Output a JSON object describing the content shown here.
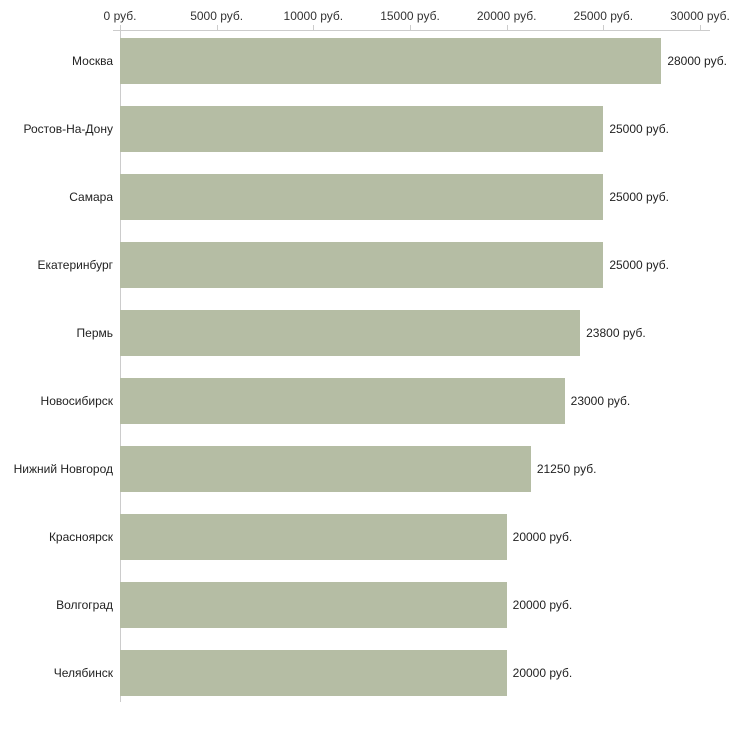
{
  "chart_data": {
    "type": "bar",
    "orientation": "horizontal",
    "title": "",
    "xlabel": "",
    "ylabel": "",
    "categories": [
      "Москва",
      "Ростов-На-Дону",
      "Самара",
      "Екатеринбург",
      "Пермь",
      "Новосибирск",
      "Нижний Новгород",
      "Красноярск",
      "Волгоград",
      "Челябинск"
    ],
    "values": [
      28000,
      25000,
      25000,
      25000,
      23800,
      23000,
      21250,
      20000,
      20000,
      20000
    ],
    "value_labels": [
      "28000 руб.",
      "25000 руб.",
      "25000 руб.",
      "25000 руб.",
      "23800 руб.",
      "23000 руб.",
      "21250 руб.",
      "20000 руб.",
      "20000 руб.",
      "20000 руб."
    ],
    "x_axis": {
      "position": "top",
      "min": 0,
      "max": 30000,
      "ticks": [
        0,
        5000,
        10000,
        15000,
        20000,
        25000,
        30000
      ],
      "tick_labels": [
        "0 руб.",
        "5000 руб.",
        "10000 руб.",
        "15000 руб.",
        "20000 руб.",
        "25000 руб.",
        "30000 руб."
      ]
    },
    "grid": false,
    "legend": false,
    "colors": {
      "bar": "#b5bda4",
      "axis": "#cccccc",
      "text": "#222222",
      "background": "#ffffff"
    }
  }
}
